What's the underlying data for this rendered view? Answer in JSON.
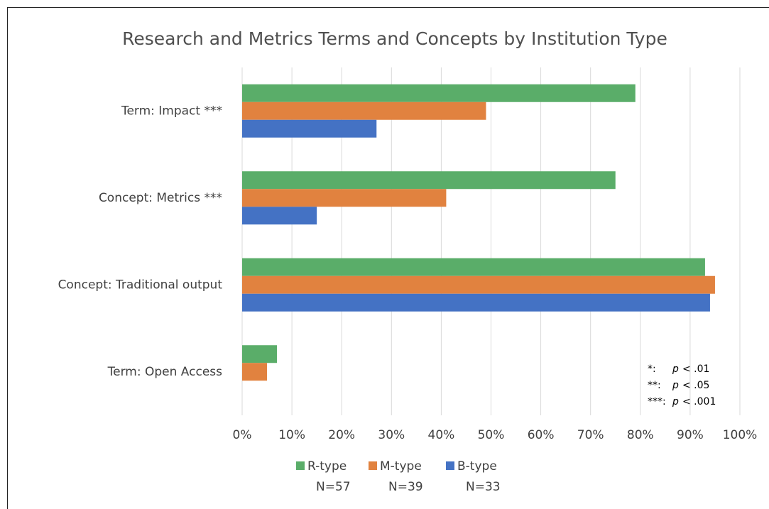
{
  "chart_data": {
    "type": "hbar",
    "title": "Research and Metrics Terms and Concepts by Institution Type",
    "categories": [
      "Term: Impact ***",
      "Concept: Metrics ***",
      "Concept: Traditional output",
      "Term: Open Access"
    ],
    "series": [
      {
        "name": "R-type",
        "n": "N=57",
        "color": "#5aad69",
        "values": [
          79,
          75,
          93,
          7
        ]
      },
      {
        "name": "M-type",
        "n": "N=39",
        "color": "#e1823f",
        "values": [
          49,
          41,
          95,
          5
        ]
      },
      {
        "name": "B-type",
        "n": "N=33",
        "color": "#4472c4",
        "values": [
          27,
          15,
          94,
          0
        ]
      }
    ],
    "xlim": [
      0,
      100
    ],
    "xticks": [
      {
        "value": 0,
        "label": "0%"
      },
      {
        "value": 10,
        "label": "10%"
      },
      {
        "value": 20,
        "label": "20%"
      },
      {
        "value": 30,
        "label": "30%"
      },
      {
        "value": 40,
        "label": "40%"
      },
      {
        "value": 50,
        "label": "50%"
      },
      {
        "value": 60,
        "label": "60%"
      },
      {
        "value": 70,
        "label": "70%"
      },
      {
        "value": 80,
        "label": "80%"
      },
      {
        "value": 90,
        "label": "90%"
      },
      {
        "value": 100,
        "label": "100%"
      }
    ],
    "grid": true,
    "legend": "bottom",
    "annotations": [
      {
        "symbol": "*:",
        "p": "p",
        "threshold": "< .01"
      },
      {
        "symbol": "**:",
        "p": "p",
        "threshold": "< .05"
      },
      {
        "symbol": "***:",
        "p": "p",
        "threshold": "< .001"
      }
    ]
  }
}
